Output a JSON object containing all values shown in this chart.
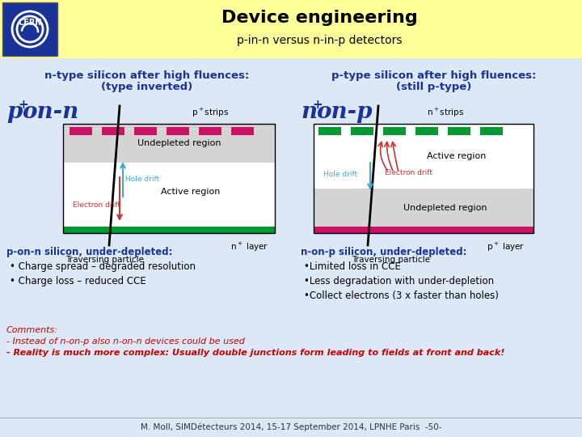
{
  "title": "Device engineering",
  "subtitle": "p-in-n versus n-in-p detectors",
  "background_color": "#dce8f5",
  "header_bg": "#ffff99",
  "left_heading1": "n-type silicon after high fluences:",
  "left_heading2": "(type inverted)",
  "right_heading1": "p-type silicon after high fluences:",
  "right_heading2": "(still p-type)",
  "left_bullet_title": "p-on-n silicon, under-depleted:",
  "right_bullet_title": "n-on-p silicon, under-depleted:",
  "left_bullets": [
    "Charge spread – degraded resolution",
    "Charge loss – reduced CCE"
  ],
  "right_bullets": [
    "Limited loss in CCE",
    "Less degradation with under-depletion",
    "Collect electrons (3 x faster than holes)"
  ],
  "comments_line1": "Comments:",
  "comments_line2": "- Instead of n-on-p also n-on-n devices could be used",
  "comments_line3": "- Reality is much more complex: Usually double junctions form leading to fields at front and back!",
  "footer": "M. Moll, SIMDétecteurs 2014, 15-17 September 2014, LPNHE Paris  -50-",
  "heading_color": "#1a3399",
  "label_color": "#1a3399",
  "bullet_title_color": "#1a3399",
  "bullet_color": "#000000",
  "comment_color": "#cc0000",
  "footer_color": "#333333",
  "pink_color": "#cc1166",
  "green_color": "#009933",
  "hole_drift_color": "#44aacc",
  "electron_drift_color": "#cc3333"
}
